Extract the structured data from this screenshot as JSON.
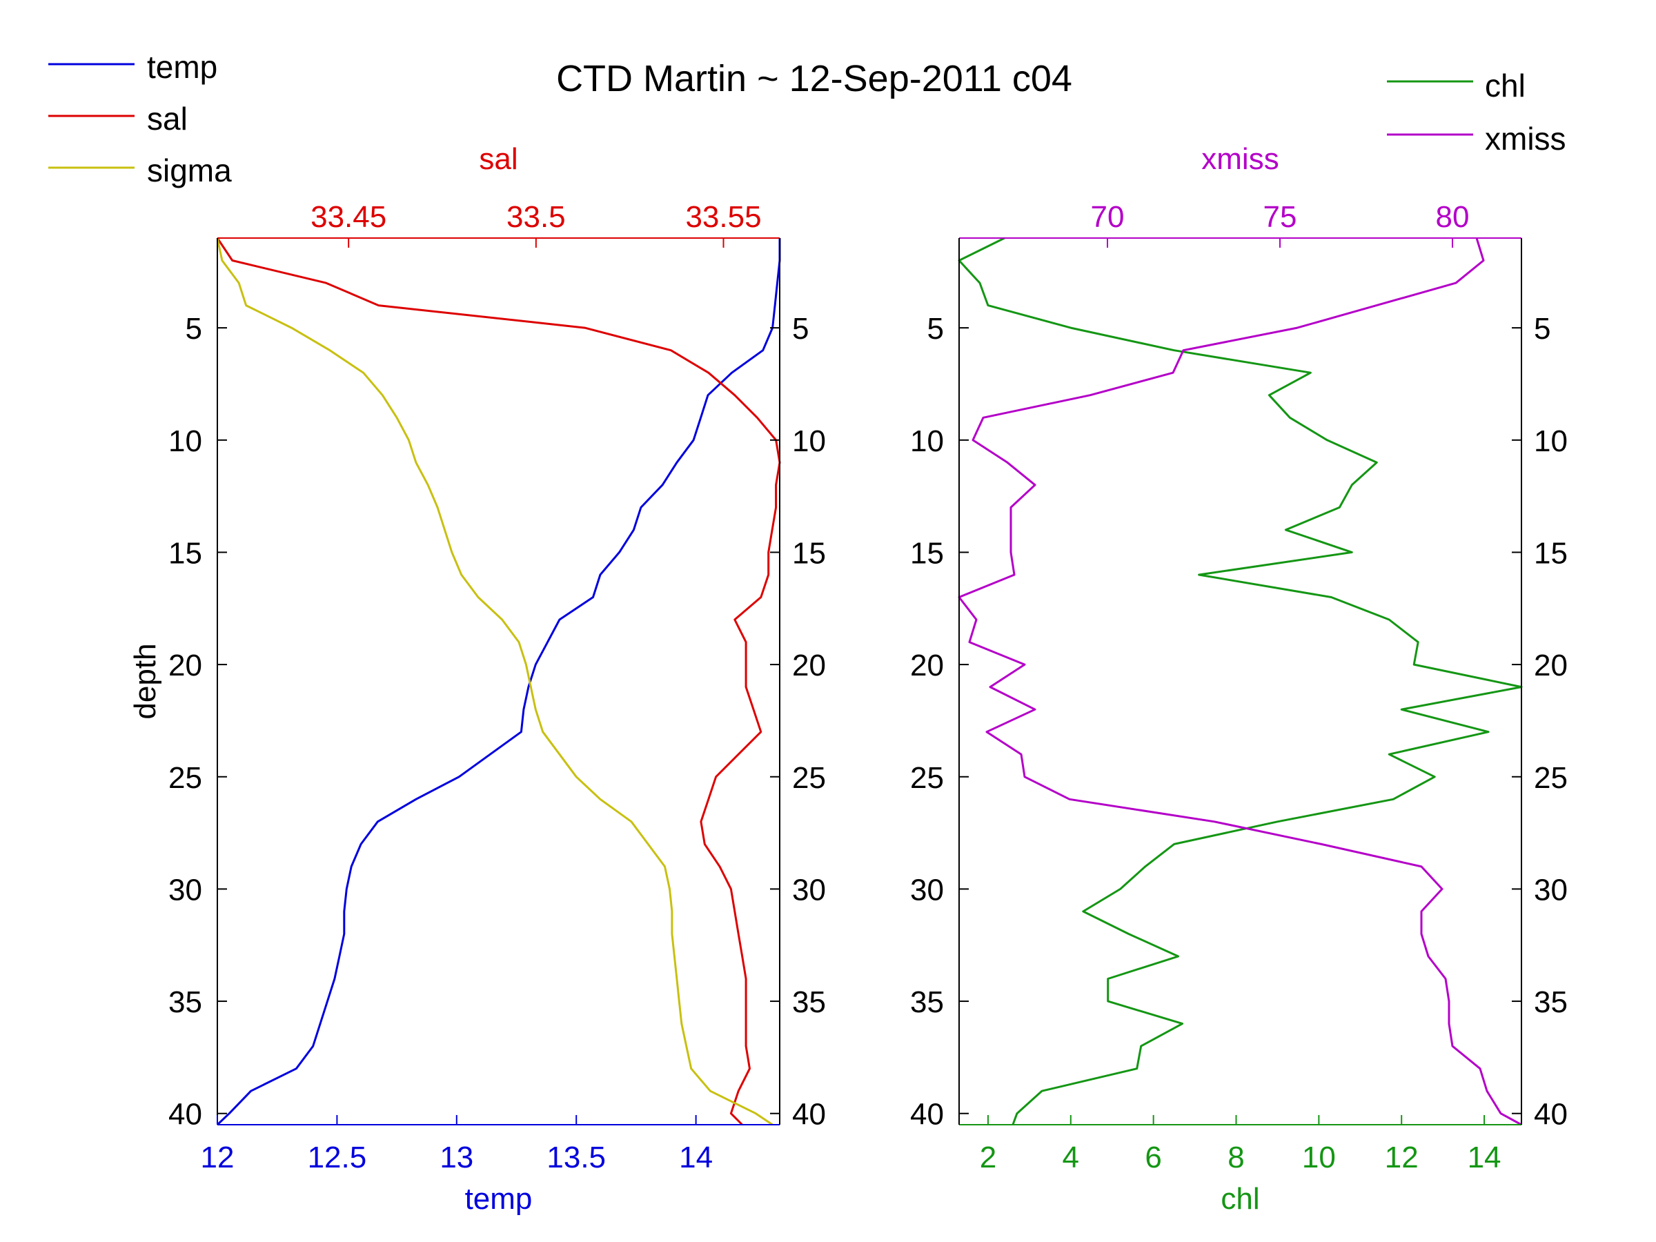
{
  "title": "CTD Martin ~ 12-Sep-2011 c04",
  "colors": {
    "temp": "#0000dd",
    "sal": "#dd0000",
    "sigma": "#c8c010",
    "chl": "#149614",
    "xmiss": "#b400c8",
    "axis": "#000000"
  },
  "legend_left": [
    "temp",
    "sal",
    "sigma"
  ],
  "legend_right": [
    "chl",
    "xmiss"
  ],
  "chart_data": [
    {
      "type": "line",
      "panel": "left",
      "ylabel": "depth",
      "y_reversed": true,
      "ylim": [
        1,
        40.5
      ],
      "yticks": [
        5,
        10,
        15,
        20,
        25,
        30,
        35,
        40
      ],
      "grid": false,
      "bottom_axis": {
        "label": "temp",
        "xlim": [
          12,
          14.35
        ],
        "ticks": [
          12,
          12.5,
          13,
          13.5,
          14
        ],
        "tick_labels": [
          "12",
          "12.5",
          "13",
          "13.5",
          "14"
        ]
      },
      "top_axis": {
        "label": "sal",
        "xlim": [
          33.415,
          33.565
        ],
        "ticks": [
          33.45,
          33.5,
          33.55
        ],
        "tick_labels": [
          "33.45",
          "33.5",
          "33.55"
        ]
      },
      "series": [
        {
          "name": "temp",
          "axis": "bottom",
          "depth": [
            1,
            2,
            3,
            4,
            5,
            6,
            7,
            8,
            9,
            10,
            11,
            12,
            13,
            14,
            15,
            16,
            17,
            18,
            19,
            20,
            21,
            22,
            23,
            24,
            25,
            26,
            27,
            28,
            29,
            30,
            31,
            32,
            33,
            34,
            35,
            36,
            37,
            38,
            39,
            40,
            40.5
          ],
          "values": [
            14.35,
            14.35,
            14.34,
            14.33,
            14.32,
            14.28,
            14.15,
            14.05,
            14.02,
            13.99,
            13.92,
            13.86,
            13.77,
            13.74,
            13.68,
            13.6,
            13.57,
            13.43,
            13.38,
            13.33,
            13.3,
            13.28,
            13.27,
            13.14,
            13.01,
            12.83,
            12.67,
            12.6,
            12.56,
            12.54,
            12.53,
            12.53,
            12.51,
            12.49,
            12.46,
            12.43,
            12.4,
            12.33,
            12.14,
            12.05,
            12.0
          ]
        },
        {
          "name": "sal",
          "axis": "top",
          "depth": [
            1,
            2,
            3,
            4,
            5,
            6,
            7,
            8,
            9,
            10,
            11,
            12,
            13,
            14,
            15,
            16,
            17,
            18,
            19,
            20,
            21,
            22,
            23,
            24,
            25,
            26,
            27,
            28,
            29,
            30,
            31,
            32,
            33,
            34,
            35,
            36,
            37,
            38,
            39,
            40,
            40.5
          ],
          "values": [
            33.415,
            33.419,
            33.444,
            33.458,
            33.513,
            33.536,
            33.546,
            33.553,
            33.559,
            33.564,
            33.565,
            33.564,
            33.564,
            33.563,
            33.562,
            33.562,
            33.56,
            33.553,
            33.556,
            33.556,
            33.556,
            33.558,
            33.56,
            33.554,
            33.548,
            33.546,
            33.544,
            33.545,
            33.549,
            33.552,
            33.553,
            33.554,
            33.555,
            33.556,
            33.556,
            33.556,
            33.556,
            33.557,
            33.554,
            33.552,
            33.555
          ]
        },
        {
          "name": "sigma",
          "axis": "bottom",
          "depth": [
            1,
            2,
            3,
            4,
            5,
            6,
            7,
            8,
            9,
            10,
            11,
            12,
            13,
            14,
            15,
            16,
            17,
            18,
            19,
            20,
            21,
            22,
            23,
            24,
            25,
            26,
            27,
            28,
            29,
            30,
            31,
            32,
            33,
            34,
            35,
            36,
            37,
            38,
            39,
            40,
            40.5
          ],
          "values": [
            12.0,
            12.02,
            12.09,
            12.12,
            12.31,
            12.47,
            12.61,
            12.69,
            12.75,
            12.8,
            12.83,
            12.88,
            12.92,
            12.95,
            12.98,
            13.02,
            13.09,
            13.19,
            13.26,
            13.29,
            13.31,
            13.33,
            13.36,
            13.43,
            13.5,
            13.6,
            13.73,
            13.8,
            13.87,
            13.89,
            13.9,
            13.9,
            13.91,
            13.92,
            13.93,
            13.94,
            13.96,
            13.98,
            14.06,
            14.25,
            14.32
          ]
        }
      ]
    },
    {
      "type": "line",
      "panel": "right",
      "y_reversed": true,
      "ylim": [
        1,
        40.5
      ],
      "yticks": [
        5,
        10,
        15,
        20,
        25,
        30,
        35,
        40
      ],
      "grid": false,
      "bottom_axis": {
        "label": "chl",
        "xlim": [
          1.3,
          14.9
        ],
        "ticks": [
          2,
          4,
          6,
          8,
          10,
          12,
          14
        ],
        "tick_labels": [
          "2",
          "4",
          "6",
          "8",
          "10",
          "12",
          "14"
        ]
      },
      "top_axis": {
        "label": "xmiss",
        "xlim": [
          65.7,
          82.0
        ],
        "ticks": [
          70,
          75,
          80
        ],
        "tick_labels": [
          "70",
          "75",
          "80"
        ]
      },
      "series": [
        {
          "name": "chl",
          "axis": "bottom",
          "depth": [
            1,
            2,
            3,
            4,
            5,
            6,
            7,
            8,
            9,
            10,
            11,
            12,
            13,
            14,
            15,
            16,
            17,
            18,
            19,
            20,
            21,
            22,
            23,
            24,
            25,
            26,
            27,
            28,
            29,
            30,
            31,
            32,
            33,
            34,
            35,
            36,
            37,
            38,
            39,
            40,
            40.5
          ],
          "values": [
            2.4,
            1.3,
            1.8,
            2.0,
            4.0,
            6.5,
            9.8,
            8.8,
            9.3,
            10.2,
            11.4,
            10.8,
            10.5,
            9.2,
            10.8,
            7.1,
            10.3,
            11.7,
            12.4,
            12.3,
            14.9,
            12.0,
            14.1,
            11.7,
            12.8,
            11.8,
            9.0,
            6.5,
            5.8,
            5.2,
            4.3,
            5.4,
            6.6,
            4.9,
            4.9,
            6.7,
            5.7,
            5.6,
            3.3,
            2.7,
            2.6
          ]
        },
        {
          "name": "xmiss",
          "axis": "top",
          "depth": [
            1,
            2,
            3,
            4,
            5,
            6,
            7,
            8,
            9,
            10,
            11,
            12,
            13,
            14,
            15,
            16,
            17,
            18,
            19,
            20,
            21,
            22,
            23,
            24,
            25,
            26,
            27,
            28,
            29,
            30,
            31,
            32,
            33,
            34,
            35,
            36,
            37,
            38,
            39,
            40,
            40.5
          ],
          "values": [
            80.7,
            80.9,
            80.1,
            77.8,
            75.5,
            72.2,
            71.9,
            69.5,
            66.4,
            66.1,
            67.1,
            67.9,
            67.2,
            67.2,
            67.2,
            67.3,
            65.7,
            66.2,
            66.0,
            67.6,
            66.6,
            67.9,
            66.5,
            67.5,
            67.6,
            68.9,
            73.1,
            76.2,
            79.1,
            79.7,
            79.1,
            79.1,
            79.3,
            79.8,
            79.9,
            79.9,
            80.0,
            80.8,
            81.0,
            81.4,
            82.0
          ]
        }
      ]
    }
  ]
}
